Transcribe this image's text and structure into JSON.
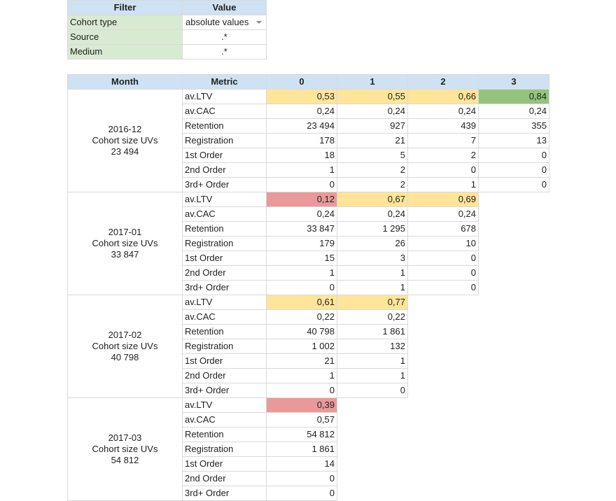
{
  "filter_table": {
    "headers": [
      "Filter",
      "Value"
    ],
    "rows": [
      {
        "label": "Cohort type",
        "value": "absolute values",
        "dropdown": true
      },
      {
        "label": "Source",
        "value": ".*"
      },
      {
        "label": "Medium",
        "value": ".*"
      }
    ]
  },
  "cohort_table": {
    "headers": [
      "Month",
      "Metric",
      "0",
      "1",
      "2",
      "3"
    ],
    "cohort_label": "Cohort size UVs",
    "highlight_colors": {
      "yellow": "#ffe599",
      "green": "#93c47d",
      "red": "#ea9999"
    },
    "cohorts": [
      {
        "month": "2016-12",
        "size": "23 494",
        "rows": [
          {
            "metric": "av.LTV",
            "values": [
              "0,53",
              "0,55",
              "0,66",
              "0,84"
            ],
            "highlights": [
              "yellow",
              "yellow",
              "yellow",
              "green"
            ]
          },
          {
            "metric": "av.CAC",
            "values": [
              "0,24",
              "0,24",
              "0,24",
              "0,24"
            ]
          },
          {
            "metric": "Retention",
            "values": [
              "23 494",
              "927",
              "439",
              "355"
            ]
          },
          {
            "metric": "Registration",
            "values": [
              "178",
              "21",
              "7",
              "13"
            ]
          },
          {
            "metric": "1st Order",
            "values": [
              "18",
              "5",
              "2",
              "0"
            ]
          },
          {
            "metric": "2nd Order",
            "values": [
              "1",
              "2",
              "0",
              "0"
            ]
          },
          {
            "metric": "3rd+ Order",
            "values": [
              "0",
              "2",
              "1",
              "0"
            ]
          }
        ]
      },
      {
        "month": "2017-01",
        "size": "33 847",
        "rows": [
          {
            "metric": "av.LTV",
            "values": [
              "0,12",
              "0,67",
              "0,69"
            ],
            "highlights": [
              "red",
              "yellow",
              "yellow"
            ]
          },
          {
            "metric": "av.CAC",
            "values": [
              "0,24",
              "0,24",
              "0,24"
            ]
          },
          {
            "metric": "Retention",
            "values": [
              "33 847",
              "1 295",
              "678"
            ]
          },
          {
            "metric": "Registration",
            "values": [
              "179",
              "26",
              "10"
            ]
          },
          {
            "metric": "1st Order",
            "values": [
              "15",
              "3",
              "0"
            ]
          },
          {
            "metric": "2nd Order",
            "values": [
              "1",
              "1",
              "0"
            ]
          },
          {
            "metric": "3rd+ Order",
            "values": [
              "0",
              "1",
              "0"
            ]
          }
        ]
      },
      {
        "month": "2017-02",
        "size": "40 798",
        "rows": [
          {
            "metric": "av.LTV",
            "values": [
              "0,61",
              "0,77"
            ],
            "highlights": [
              "yellow",
              "yellow"
            ]
          },
          {
            "metric": "av.CAC",
            "values": [
              "0,22",
              "0,22"
            ]
          },
          {
            "metric": "Retention",
            "values": [
              "40 798",
              "1 861"
            ]
          },
          {
            "metric": "Registration",
            "values": [
              "1 002",
              "132"
            ]
          },
          {
            "metric": "1st Order",
            "values": [
              "21",
              "1"
            ]
          },
          {
            "metric": "2nd Order",
            "values": [
              "1",
              "1"
            ]
          },
          {
            "metric": "3rd+ Order",
            "values": [
              "0",
              "0"
            ]
          }
        ]
      },
      {
        "month": "2017-03",
        "size": "54 812",
        "rows": [
          {
            "metric": "av.LTV",
            "values": [
              "0,39"
            ],
            "highlights": [
              "red"
            ]
          },
          {
            "metric": "av.CAC",
            "values": [
              "0,57"
            ]
          },
          {
            "metric": "Retention",
            "values": [
              "54 812"
            ]
          },
          {
            "metric": "Registration",
            "values": [
              "1 861"
            ]
          },
          {
            "metric": "1st Order",
            "values": [
              "14"
            ]
          },
          {
            "metric": "2nd Order",
            "values": [
              "0"
            ]
          },
          {
            "metric": "3rd+ Order",
            "values": [
              "0"
            ]
          }
        ]
      }
    ]
  }
}
